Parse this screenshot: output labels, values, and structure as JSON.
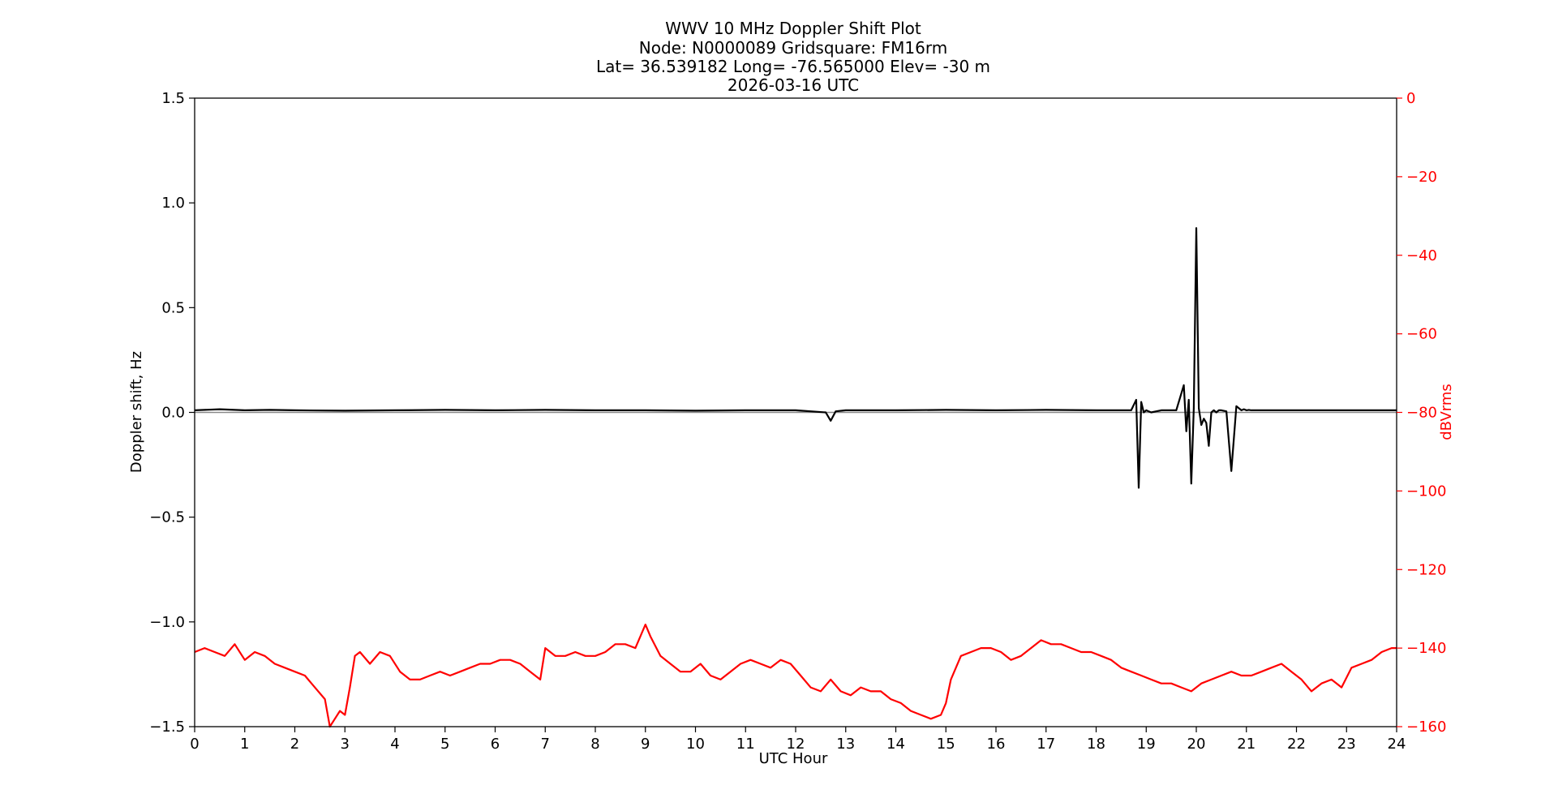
{
  "chart_data": {
    "type": "line",
    "title_lines": [
      "WWV 10 MHz Doppler Shift Plot",
      "Node:  N0000089     Gridsquare:  FM16rm",
      "Lat= 36.539182    Long= -76.565000    Elev= -30 m",
      "2026-03-16  UTC"
    ],
    "xlabel": "UTC Hour",
    "ylabel_left": "Doppler shift, Hz",
    "ylabel_right": "dBVrms",
    "xlim": [
      0,
      24
    ],
    "ylim_left": [
      -1.5,
      1.5
    ],
    "ylim_right": [
      -160,
      0
    ],
    "x_ticks": [
      0,
      1,
      2,
      3,
      4,
      5,
      6,
      7,
      8,
      9,
      10,
      11,
      12,
      13,
      14,
      15,
      16,
      17,
      18,
      19,
      20,
      21,
      22,
      23,
      24
    ],
    "y_ticks_left": [
      -1.5,
      -1.0,
      -0.5,
      0.0,
      0.5,
      1.0,
      1.5
    ],
    "y_tick_labels_left": [
      "−1.5",
      "−1.0",
      "−0.5",
      "0.0",
      "0.5",
      "1.0",
      "1.5"
    ],
    "y_ticks_right": [
      0,
      -20,
      -40,
      -60,
      -80,
      -100,
      -120,
      -140,
      -160
    ],
    "y_tick_labels_right": [
      "0",
      "−20",
      "−40",
      "−60",
      "−80",
      "−100",
      "−120",
      "−140",
      "−160"
    ],
    "grid": false,
    "colors": {
      "doppler": "#000000",
      "power": "#ff0000",
      "right_axis": "#ff0000"
    },
    "series": [
      {
        "axis": "left",
        "color": "#000000",
        "x": [
          0,
          0.5,
          1.0,
          1.5,
          2.0,
          3.0,
          4.0,
          5.0,
          6.0,
          7.0,
          8.0,
          9.0,
          10.0,
          11.0,
          12.0,
          12.6,
          12.7,
          12.8,
          13.0,
          14.0,
          15.0,
          16.0,
          17.0,
          18.0,
          18.7,
          18.8,
          18.85,
          18.9,
          18.95,
          19.0,
          19.05,
          19.1,
          19.3,
          19.6,
          19.75,
          19.8,
          19.85,
          19.9,
          19.95,
          20.0,
          20.05,
          20.1,
          20.15,
          20.2,
          20.25,
          20.3,
          20.35,
          20.4,
          20.45,
          20.5,
          20.6,
          20.7,
          20.8,
          20.9,
          20.95,
          21.0,
          21.05,
          21.1,
          21.5,
          22.0,
          23.0,
          24.0
        ],
        "y": [
          0.01,
          0.015,
          0.01,
          0.012,
          0.01,
          0.008,
          0.01,
          0.012,
          0.01,
          0.012,
          0.01,
          0.01,
          0.008,
          0.01,
          0.01,
          0.0,
          -0.04,
          0.005,
          0.01,
          0.01,
          0.012,
          0.01,
          0.012,
          0.01,
          0.01,
          0.06,
          -0.36,
          0.05,
          0.0,
          0.01,
          0.005,
          0.0,
          0.01,
          0.01,
          0.13,
          -0.09,
          0.06,
          -0.34,
          0.02,
          0.88,
          0.02,
          -0.06,
          -0.03,
          -0.05,
          -0.16,
          0.0,
          0.01,
          0.0,
          0.01,
          0.01,
          0.005,
          -0.28,
          0.03,
          0.01,
          0.015,
          0.01,
          0.012,
          0.01,
          0.01,
          0.01,
          0.01,
          0.01
        ]
      },
      {
        "axis": "right",
        "color": "#ff0000",
        "x": [
          0,
          0.2,
          0.4,
          0.6,
          0.8,
          1.0,
          1.2,
          1.4,
          1.6,
          1.8,
          2.0,
          2.2,
          2.4,
          2.6,
          2.7,
          2.8,
          2.9,
          3.0,
          3.1,
          3.2,
          3.3,
          3.5,
          3.7,
          3.9,
          4.1,
          4.3,
          4.5,
          4.7,
          4.9,
          5.1,
          5.3,
          5.5,
          5.7,
          5.9,
          6.1,
          6.3,
          6.5,
          6.7,
          6.9,
          7.0,
          7.2,
          7.4,
          7.6,
          7.8,
          8.0,
          8.2,
          8.4,
          8.6,
          8.8,
          9.0,
          9.1,
          9.3,
          9.5,
          9.7,
          9.9,
          10.1,
          10.3,
          10.5,
          10.7,
          10.9,
          11.1,
          11.3,
          11.5,
          11.7,
          11.9,
          12.1,
          12.3,
          12.5,
          12.7,
          12.9,
          13.1,
          13.3,
          13.5,
          13.7,
          13.9,
          14.1,
          14.3,
          14.5,
          14.7,
          14.9,
          15.0,
          15.1,
          15.3,
          15.5,
          15.7,
          15.9,
          16.1,
          16.3,
          16.5,
          16.7,
          16.9,
          17.1,
          17.3,
          17.5,
          17.7,
          17.9,
          18.1,
          18.3,
          18.5,
          18.7,
          18.9,
          19.1,
          19.3,
          19.5,
          19.7,
          19.9,
          20.1,
          20.3,
          20.5,
          20.7,
          20.9,
          21.1,
          21.3,
          21.5,
          21.7,
          21.9,
          22.1,
          22.3,
          22.5,
          22.7,
          22.9,
          23.1,
          23.3,
          23.5,
          23.7,
          23.9,
          24.0
        ],
        "y": [
          -141,
          -140,
          -141,
          -142,
          -139,
          -143,
          -141,
          -142,
          -144,
          -145,
          -146,
          -147,
          -150,
          -153,
          -162,
          -158,
          -156,
          -157,
          -150,
          -142,
          -141,
          -144,
          -141,
          -142,
          -146,
          -148,
          -148,
          -147,
          -146,
          -147,
          -146,
          -145,
          -144,
          -144,
          -143,
          -143,
          -144,
          -146,
          -148,
          -140,
          -142,
          -142,
          -141,
          -142,
          -142,
          -141,
          -139,
          -139,
          -140,
          -134,
          -137,
          -142,
          -144,
          -146,
          -146,
          -144,
          -147,
          -148,
          -146,
          -144,
          -143,
          -144,
          -145,
          -143,
          -144,
          -147,
          -150,
          -151,
          -148,
          -151,
          -152,
          -150,
          -151,
          -151,
          -153,
          -154,
          -156,
          -157,
          -158,
          -157,
          -154,
          -148,
          -142,
          -141,
          -140,
          -140,
          -141,
          -143,
          -142,
          -140,
          -138,
          -139,
          -139,
          -140,
          -141,
          -141,
          -142,
          -143,
          -145,
          -146,
          -147,
          -148,
          -149,
          -149,
          -150,
          -151,
          -149,
          -148,
          -147,
          -146,
          -147,
          -147,
          -146,
          -145,
          -144,
          -146,
          -148,
          -151,
          -149,
          -148,
          -150,
          -145,
          -144,
          -143,
          -141,
          -140,
          -140
        ]
      }
    ]
  }
}
